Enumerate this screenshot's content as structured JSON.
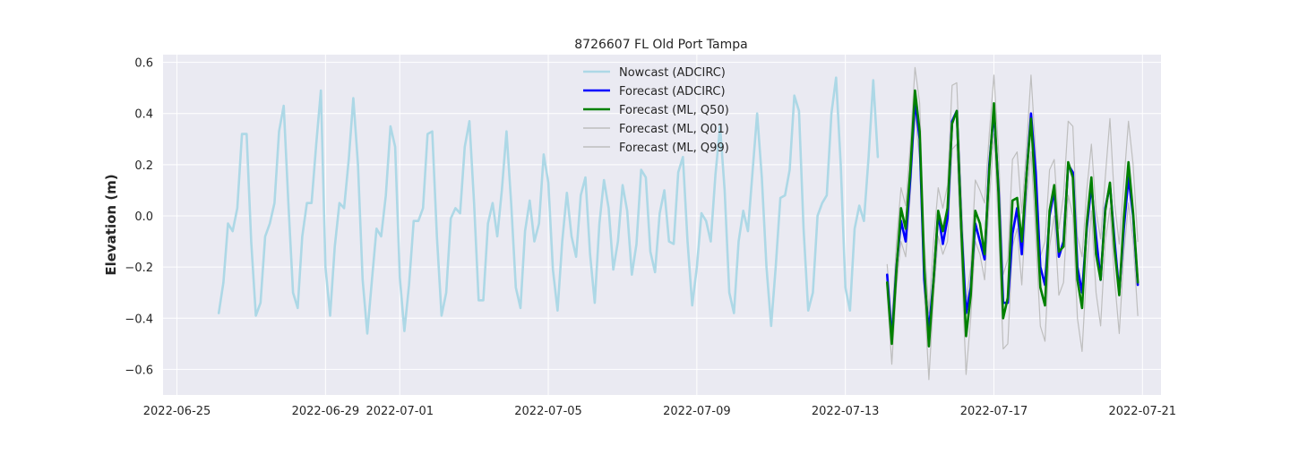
{
  "chart_data": {
    "type": "line",
    "title": "8726607 FL Old Port Tampa",
    "xlabel": "",
    "ylabel": "Elevation (m)",
    "xlim": [
      "2022-06-24T15:00",
      "2022-07-21T12:00"
    ],
    "ylim": [
      -0.7,
      0.63
    ],
    "grid": true,
    "legend_position": "top-center",
    "x_ticks": [
      "2022-06-25",
      "2022-06-29",
      "2022-07-01",
      "2022-07-05",
      "2022-07-09",
      "2022-07-13",
      "2022-07-17",
      "2022-07-21"
    ],
    "y_ticks": [
      -0.6,
      -0.4,
      -0.2,
      0.0,
      0.2,
      0.4,
      0.6
    ],
    "y_tick_labels": [
      "−0.6",
      "−0.4",
      "−0.2",
      "0.0",
      "0.2",
      "0.4",
      "0.6"
    ],
    "colors": {
      "background": "#eaeaf2",
      "grid": "#ffffff",
      "nowcast": "#add8e6",
      "forecast_adcirc": "#0000ff",
      "forecast_q50": "#008000",
      "forecast_q01": "#bebebe",
      "forecast_q99": "#bebebe"
    },
    "series": [
      {
        "name": "Nowcast (ADCIRC)",
        "key": "nowcast",
        "start": "2022-06-26T03:00",
        "step_hours": 3,
        "values": [
          -0.38,
          -0.26,
          -0.03,
          -0.06,
          0.03,
          0.32,
          0.32,
          -0.1,
          -0.39,
          -0.34,
          -0.08,
          -0.03,
          0.05,
          0.33,
          0.43,
          0.05,
          -0.3,
          -0.36,
          -0.08,
          0.05,
          0.05,
          0.28,
          0.49,
          -0.2,
          -0.39,
          -0.12,
          0.05,
          0.03,
          0.22,
          0.46,
          0.2,
          -0.25,
          -0.46,
          -0.25,
          -0.05,
          -0.08,
          0.08,
          0.35,
          0.27,
          -0.24,
          -0.45,
          -0.27,
          -0.02,
          -0.02,
          0.03,
          0.32,
          0.33,
          -0.08,
          -0.39,
          -0.3,
          -0.01,
          0.03,
          0.01,
          0.27,
          0.37,
          0.05,
          -0.33,
          -0.33,
          -0.03,
          0.05,
          -0.08,
          0.1,
          0.33,
          0.05,
          -0.28,
          -0.36,
          -0.06,
          0.06,
          -0.1,
          -0.03,
          0.24,
          0.13,
          -0.21,
          -0.37,
          -0.1,
          0.09,
          -0.08,
          -0.16,
          0.08,
          0.15,
          -0.15,
          -0.34,
          -0.03,
          0.14,
          0.03,
          -0.21,
          -0.1,
          0.12,
          0.02,
          -0.23,
          -0.11,
          0.18,
          0.15,
          -0.14,
          -0.22,
          0.01,
          0.1,
          -0.1,
          -0.11,
          0.17,
          0.23,
          -0.1,
          -0.35,
          -0.2,
          0.01,
          -0.02,
          -0.1,
          0.16,
          0.35,
          0.1,
          -0.3,
          -0.38,
          -0.1,
          0.02,
          -0.06,
          0.17,
          0.4,
          0.15,
          -0.2,
          -0.43,
          -0.2,
          0.07,
          0.08,
          0.18,
          0.47,
          0.41,
          -0.05,
          -0.37,
          -0.3,
          0.0,
          0.05,
          0.08,
          0.4,
          0.54,
          0.2,
          -0.28,
          -0.37,
          -0.05,
          0.04,
          -0.02,
          0.23,
          0.53,
          0.23
        ]
      },
      {
        "name": "Forecast (ADCIRC)",
        "key": "forecast_adcirc",
        "start": "2022-07-14T03:00",
        "step_hours": 3,
        "values": [
          -0.23,
          -0.48,
          -0.2,
          -0.02,
          -0.1,
          0.15,
          0.45,
          0.3,
          -0.25,
          -0.45,
          -0.25,
          0.01,
          -0.11,
          -0.01,
          0.37,
          0.41,
          -0.05,
          -0.38,
          -0.28,
          -0.03,
          -0.1,
          -0.17,
          0.2,
          0.41,
          0.1,
          -0.34,
          -0.34,
          -0.07,
          0.03,
          -0.15,
          0.15,
          0.4,
          0.17,
          -0.2,
          -0.27,
          0.0,
          0.1,
          -0.16,
          -0.1,
          0.2,
          0.17,
          -0.2,
          -0.3,
          -0.05,
          0.12,
          -0.08,
          -0.25,
          0.03,
          0.12,
          -0.1,
          -0.3,
          -0.05,
          0.15,
          0.0,
          -0.27
        ]
      },
      {
        "name": "Forecast (ML, Q50)",
        "key": "forecast_q50",
        "start": "2022-07-14T03:00",
        "step_hours": 3,
        "values": [
          -0.26,
          -0.5,
          -0.21,
          0.03,
          -0.05,
          0.18,
          0.49,
          0.33,
          -0.2,
          -0.51,
          -0.25,
          0.02,
          -0.06,
          0.03,
          0.36,
          0.41,
          -0.06,
          -0.47,
          -0.31,
          0.02,
          -0.03,
          -0.15,
          0.18,
          0.44,
          0.08,
          -0.4,
          -0.32,
          0.06,
          0.07,
          -0.1,
          0.15,
          0.38,
          0.07,
          -0.28,
          -0.35,
          0.02,
          0.12,
          -0.14,
          -0.12,
          0.21,
          0.15,
          -0.25,
          -0.36,
          -0.03,
          0.15,
          -0.15,
          -0.25,
          0.02,
          0.13,
          -0.13,
          -0.31,
          -0.01,
          0.21,
          0.01,
          -0.26
        ]
      },
      {
        "name": "Forecast (ML, Q01)",
        "key": "forecast_q01",
        "start": "2022-07-14T03:00",
        "step_hours": 3,
        "values": [
          -0.3,
          -0.58,
          -0.28,
          -0.1,
          -0.16,
          0.08,
          0.4,
          0.22,
          -0.3,
          -0.64,
          -0.32,
          -0.08,
          -0.15,
          -0.1,
          0.26,
          0.28,
          -0.18,
          -0.62,
          -0.4,
          -0.1,
          -0.15,
          -0.25,
          0.06,
          0.32,
          -0.05,
          -0.52,
          -0.5,
          -0.12,
          -0.05,
          -0.27,
          0.05,
          0.25,
          -0.08,
          -0.43,
          -0.49,
          -0.12,
          0.0,
          -0.31,
          -0.26,
          0.08,
          0.0,
          -0.4,
          -0.53,
          -0.2,
          0.02,
          -0.3,
          -0.43,
          -0.1,
          0.03,
          -0.25,
          -0.46,
          -0.15,
          0.05,
          -0.1,
          -0.39
        ]
      },
      {
        "name": "Forecast (ML, Q99)",
        "key": "forecast_q99",
        "start": "2022-07-14T03:00",
        "step_hours": 3,
        "values": [
          -0.19,
          -0.42,
          -0.1,
          0.11,
          0.04,
          0.28,
          0.58,
          0.44,
          -0.1,
          -0.38,
          -0.1,
          0.11,
          0.03,
          0.12,
          0.51,
          0.52,
          0.07,
          -0.34,
          -0.2,
          0.14,
          0.1,
          0.05,
          0.32,
          0.55,
          0.25,
          -0.23,
          -0.17,
          0.22,
          0.25,
          0.01,
          0.26,
          0.55,
          0.25,
          -0.16,
          -0.1,
          0.18,
          0.22,
          -0.05,
          0.08,
          0.37,
          0.35,
          -0.08,
          -0.16,
          0.1,
          0.28,
          0.02,
          -0.09,
          0.15,
          0.38,
          0.05,
          -0.11,
          0.13,
          0.37,
          0.2,
          -0.1
        ]
      }
    ]
  }
}
